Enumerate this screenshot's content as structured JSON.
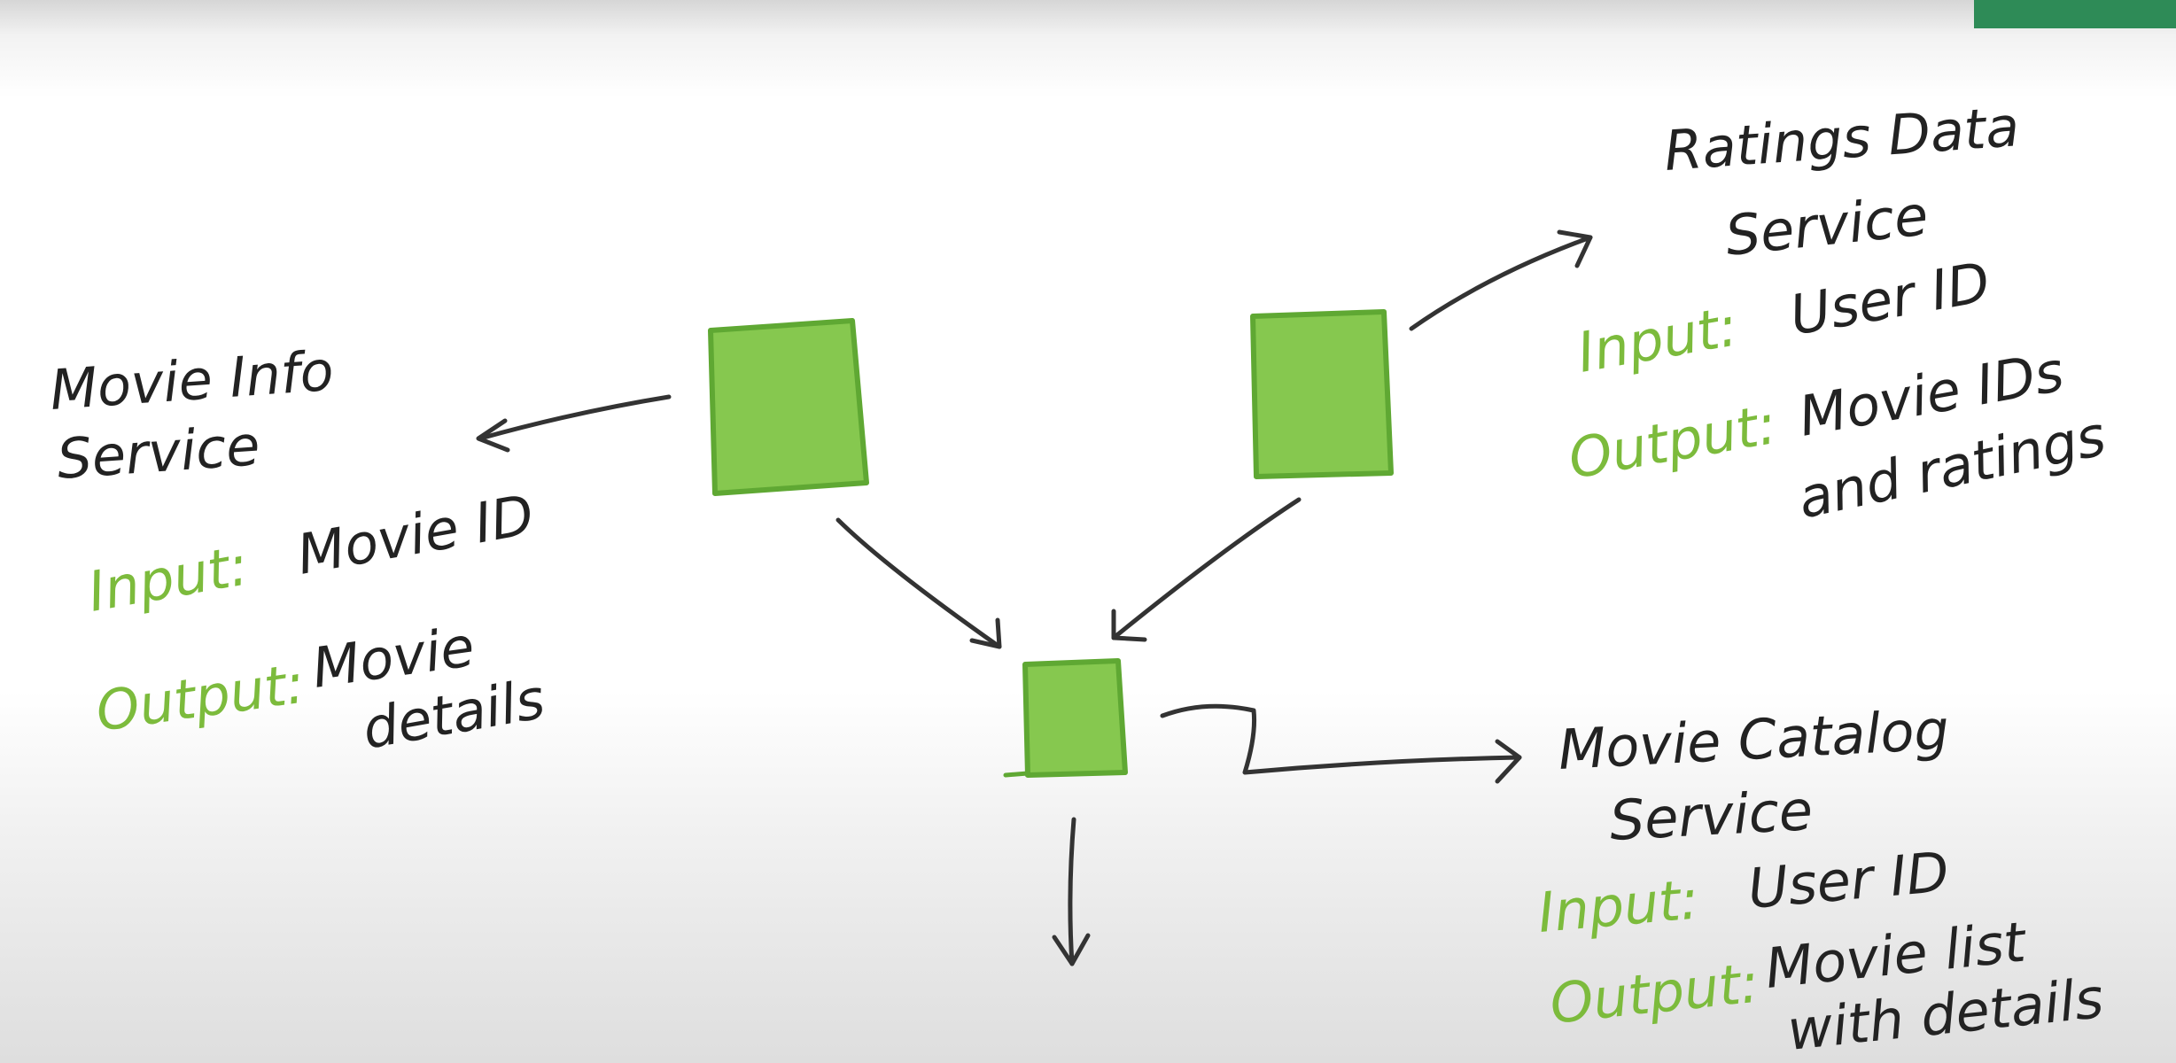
{
  "colors": {
    "box_fill": "#86c84f",
    "box_stroke": "#5fa833",
    "ink": "#333333",
    "label_green": "#7cbb3c",
    "corner_tab": "#2e8b57"
  },
  "movie_info": {
    "title_line1": "Movie Info",
    "title_line2": "Service",
    "input_label": "Input:",
    "input_value": "Movie ID",
    "output_label": "Output:",
    "output_line1": "Movie",
    "output_line2": "details"
  },
  "ratings_data": {
    "title_line1": "Ratings Data",
    "title_line2": "Service",
    "input_label": "Input:",
    "input_value": "User ID",
    "output_label": "Output:",
    "output_line1": "Movie IDs",
    "output_line2": "and ratings"
  },
  "movie_catalog": {
    "title_line1": "Movie Catalog",
    "title_line2": "Service",
    "input_label": "Input:",
    "input_value": "User ID",
    "output_label": "Output:",
    "output_line1": "Movie list",
    "output_line2": "with details"
  }
}
